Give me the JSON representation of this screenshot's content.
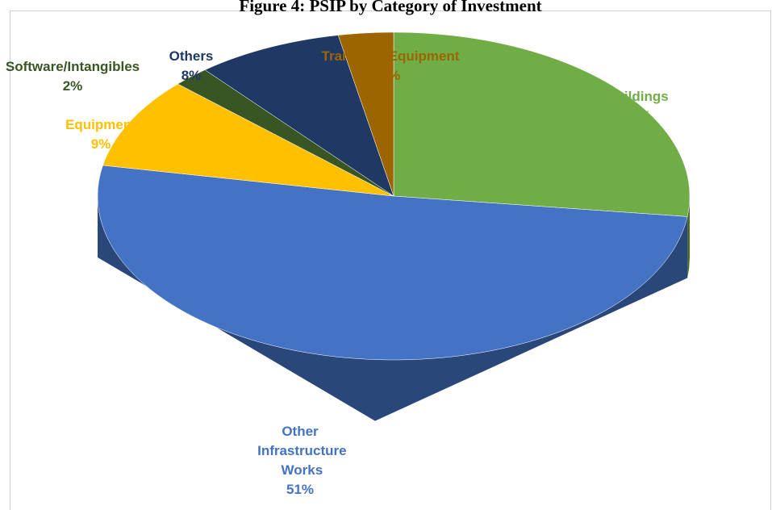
{
  "chart_data": {
    "type": "pie",
    "title": "Figure 4: PSIP by Category of Investment",
    "categories": [
      "Buildings",
      "Other Infrastructure Works",
      "Equipment",
      "Software/Intangibles",
      "Others",
      "Transport Equipment"
    ],
    "values": [
      27,
      51,
      9,
      2,
      8,
      3
    ],
    "value_labels": [
      "27%",
      "51%",
      "9%",
      "2%",
      "8%",
      "3%"
    ],
    "colors": [
      "#70ad47",
      "#4472c4",
      "#ffc000",
      "#375623",
      "#203864",
      "#9c6500"
    ]
  }
}
